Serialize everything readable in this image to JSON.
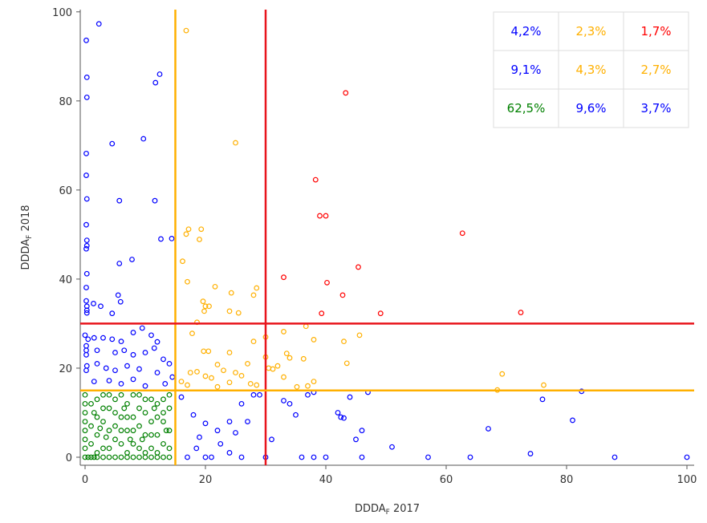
{
  "chart_data": {
    "type": "scatter",
    "xlabel": {
      "main": "DDDA",
      "sub": "F",
      "rest": " 2017"
    },
    "ylabel": {
      "main": "DDDA",
      "sub": "F",
      "rest": " 2018"
    },
    "xlim": [
      -0.8,
      101.2
    ],
    "ylim": [
      -1.8,
      100.5
    ],
    "xticks": [
      0,
      20,
      40,
      60,
      80,
      100
    ],
    "yticks": [
      0,
      20,
      40,
      60,
      80,
      100
    ],
    "reference_lines": [
      {
        "axis": "x",
        "value": 15,
        "color": "#ffb000"
      },
      {
        "axis": "x",
        "value": 30,
        "color": "#e8141c"
      },
      {
        "axis": "y",
        "value": 30,
        "color": "#e8141c"
      },
      {
        "axis": "y",
        "value": 15,
        "color": "#ffb000"
      }
    ],
    "table": {
      "rows": [
        [
          {
            "text": "4,2%",
            "color": "#0000ff"
          },
          {
            "text": "2,3%",
            "color": "#ffb000"
          },
          {
            "text": "1,7%",
            "color": "#ff0000"
          }
        ],
        [
          {
            "text": "9,1%",
            "color": "#0000ff"
          },
          {
            "text": "4,3%",
            "color": "#ffb000"
          },
          {
            "text": "2,7%",
            "color": "#ffb000"
          }
        ],
        [
          {
            "text": "62,5%",
            "color": "#008000"
          },
          {
            "text": "9,6%",
            "color": "#0000ff"
          },
          {
            "text": "3,7%",
            "color": "#0000ff"
          }
        ]
      ]
    },
    "series": [
      {
        "color": "#008000",
        "x": [
          0,
          0.5,
          1,
          1.5,
          2,
          3,
          4,
          5,
          6,
          7,
          8,
          9,
          10,
          11,
          12,
          13,
          14,
          0,
          0,
          0,
          0,
          0,
          0,
          0,
          1,
          2,
          3,
          4,
          5,
          6,
          1,
          2,
          3,
          4,
          5,
          6,
          7,
          8,
          9,
          10,
          11,
          12,
          13,
          14,
          7,
          8,
          9,
          10,
          11,
          12,
          13,
          14,
          2,
          3,
          4,
          5,
          6,
          7,
          8,
          9,
          10,
          11,
          12,
          13,
          14,
          1,
          2,
          3,
          4,
          5,
          6,
          7,
          8,
          9,
          10,
          11,
          12,
          13,
          14,
          1.5,
          2.5,
          3.5,
          6.5,
          7.5,
          9.5,
          11.5,
          13.5
        ],
        "values": [
          0,
          0,
          0,
          0,
          0,
          0,
          0,
          0,
          0,
          0,
          0,
          0,
          0,
          0,
          0,
          0,
          0,
          2,
          4,
          6,
          8,
          10,
          12,
          14,
          3,
          5,
          8,
          11,
          13,
          14,
          12,
          9,
          2,
          6,
          4,
          9,
          12,
          3,
          7,
          10,
          13,
          5,
          8,
          11,
          6,
          9,
          2,
          5,
          8,
          12,
          3,
          6,
          13,
          14,
          2,
          7,
          3,
          1,
          14,
          11,
          13,
          2,
          9,
          13,
          2,
          7,
          1,
          11,
          14,
          10,
          6,
          9,
          6,
          14,
          1,
          5,
          1,
          10,
          14,
          10,
          6.5,
          4.5,
          11,
          4,
          4,
          11,
          6
        ]
      },
      {
        "color": "#0000ff",
        "x": [
          2.3,
          0.2,
          0.3,
          12.4,
          11.7,
          0.3,
          9.7,
          4.5,
          0.2,
          0.2,
          0.3,
          5.7,
          11.6,
          0.2,
          0.3,
          0.3,
          0.2,
          12.6,
          14.4,
          5.7,
          7.8,
          0.3,
          0.2,
          5.5,
          5.9,
          0.2,
          0.3,
          0.3,
          0.3,
          1.4,
          2.6,
          4.5,
          0,
          0.5,
          1.5,
          3,
          4.5,
          6,
          8,
          9.5,
          11,
          12,
          0.2,
          0.2,
          0.2,
          2,
          5,
          6.5,
          8,
          10,
          11.5,
          13,
          14,
          0.3,
          0.2,
          2,
          3.5,
          5,
          7,
          9,
          12,
          14.5,
          1.5,
          4,
          6,
          8,
          10,
          13.3,
          16,
          18,
          20,
          22,
          24,
          26,
          28,
          29,
          17,
          20,
          21,
          24,
          26,
          30,
          31,
          33,
          35,
          36,
          38,
          38,
          40,
          42,
          43,
          45,
          46,
          46,
          47,
          44,
          51,
          57,
          64,
          67,
          74,
          76,
          81,
          82.5,
          88,
          100,
          19,
          22.5,
          27,
          25,
          18.5,
          34,
          37,
          42.5
        ],
        "values": [
          97.3,
          93.6,
          85.3,
          86,
          84.1,
          80.8,
          71.5,
          70.4,
          68.2,
          63.3,
          58,
          57.6,
          57.6,
          52.2,
          48.7,
          47.5,
          46.8,
          49,
          49.1,
          43.5,
          44.4,
          41.2,
          38.1,
          36.4,
          34.9,
          35.1,
          33.9,
          33,
          32.4,
          34.5,
          33.9,
          32.3,
          27.4,
          26.5,
          26.8,
          26.8,
          26.5,
          26,
          28,
          29,
          27.4,
          25.9,
          25,
          24,
          23,
          24,
          23.5,
          24,
          23,
          23.5,
          24.5,
          22,
          21,
          20.5,
          19.5,
          21,
          20,
          19.5,
          20.5,
          19.8,
          19,
          18,
          17,
          17.2,
          16.5,
          17.5,
          16,
          16.5,
          13.5,
          9.5,
          7.6,
          6,
          8,
          12,
          14,
          14,
          0,
          0,
          0,
          1,
          0,
          0,
          4,
          12.7,
          9.5,
          0,
          0,
          14.6,
          0,
          10,
          8.8,
          4,
          0,
          6,
          14.6,
          13.5,
          2.3,
          0,
          0,
          6.4,
          0.8,
          13,
          8.3,
          14.8,
          0,
          0,
          4.5,
          3,
          8,
          5.5,
          2,
          12,
          14,
          9
        ]
      },
      {
        "color": "#ffb000",
        "x": [
          16.8,
          25,
          17.2,
          19.3,
          16.8,
          19,
          16.2,
          17,
          21.6,
          28.5,
          24.3,
          28,
          19.6,
          20,
          20.6,
          19.8,
          24,
          25.5,
          18.6,
          17.8,
          30,
          36.7,
          38,
          43,
          45.6,
          33,
          24,
          20.5,
          19.7,
          27,
          33.5,
          34,
          36.3,
          43.5,
          17.5,
          18.6,
          23,
          25,
          26,
          30.5,
          31.2,
          32,
          16,
          17,
          20,
          21,
          24,
          27.5,
          28.5,
          22,
          35.2,
          37,
          69.3,
          76.2,
          68.5,
          33,
          38,
          30,
          28,
          22
        ],
        "values": [
          95.8,
          70.6,
          51.2,
          51.2,
          50.1,
          48.9,
          44,
          39.4,
          38.3,
          38,
          36.9,
          36.4,
          35,
          33.9,
          33.9,
          32.8,
          32.8,
          32.4,
          30.3,
          27.8,
          27,
          29.4,
          26.4,
          26,
          27.4,
          28.2,
          23.5,
          23.8,
          23.8,
          21,
          23.3,
          22.3,
          22.1,
          21.1,
          19,
          19.2,
          19.5,
          19,
          18.3,
          20,
          19.8,
          20.5,
          17,
          16.2,
          18.2,
          17.8,
          16.8,
          16.5,
          16.2,
          15.8,
          15.8,
          16,
          18.7,
          16.2,
          15.1,
          18,
          17,
          22.5,
          26,
          20.8
        ]
      },
      {
        "color": "#ff0000",
        "x": [
          43.3,
          38.3,
          39,
          40,
          62.7,
          33,
          45.4,
          40.2,
          42.8,
          39.3,
          49.1,
          72.4
        ],
        "values": [
          81.8,
          62.3,
          54.2,
          54.2,
          50.3,
          40.4,
          42.7,
          39.2,
          36.4,
          32.3,
          32.3,
          32.5
        ]
      }
    ]
  }
}
